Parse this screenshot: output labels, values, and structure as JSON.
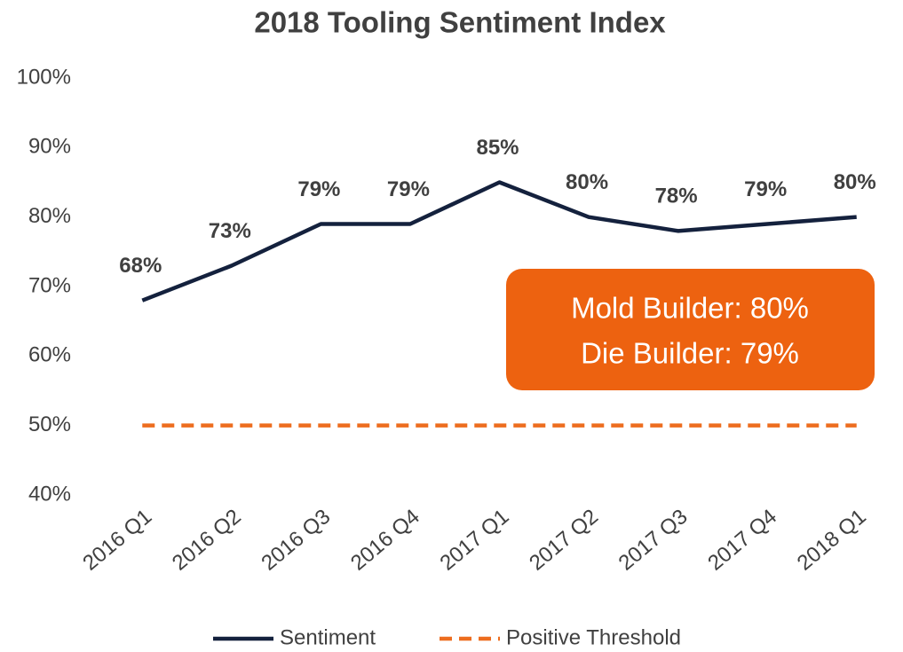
{
  "chart_data": {
    "type": "line",
    "title": "2018 Tooling Sentiment Index",
    "categories": [
      "2016 Q1",
      "2016 Q2",
      "2016 Q3",
      "2016 Q4",
      "2017 Q1",
      "2017 Q2",
      "2017 Q3",
      "2017 Q4",
      "2018 Q1"
    ],
    "series": [
      {
        "name": "Sentiment",
        "color": "#14213d",
        "line_style": "solid",
        "values": [
          68,
          73,
          79,
          79,
          85,
          80,
          78,
          79,
          80
        ],
        "value_labels": [
          "68%",
          "73%",
          "79%",
          "79%",
          "85%",
          "80%",
          "78%",
          "79%",
          "80%"
        ]
      },
      {
        "name": "Positive Threshold",
        "color": "#ed6d1f",
        "line_style": "dashed",
        "values": [
          50,
          50,
          50,
          50,
          50,
          50,
          50,
          50,
          50
        ]
      }
    ],
    "ylim": [
      40,
      100
    ],
    "yticks": [
      {
        "value": 40,
        "label": "40%"
      },
      {
        "value": 50,
        "label": "50%"
      },
      {
        "value": 60,
        "label": "60%"
      },
      {
        "value": 70,
        "label": "70%"
      },
      {
        "value": 80,
        "label": "80%"
      },
      {
        "value": 90,
        "label": "90%"
      },
      {
        "value": 100,
        "label": "100%"
      }
    ],
    "grid": false,
    "legend": "bottom",
    "annotations": [
      "Mold Builder: 80%",
      "Die Builder: 79%"
    ],
    "annotation_color": "#ed6210"
  }
}
